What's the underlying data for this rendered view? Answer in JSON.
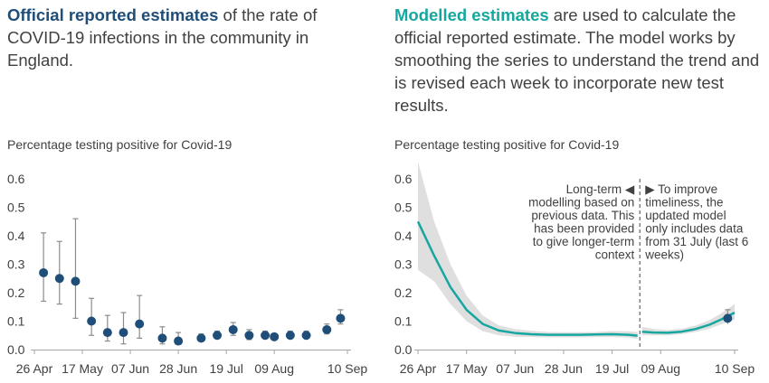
{
  "headings": {
    "left_bold": "Official reported estimates",
    "left_rest": " of the rate of COVID-19 infections in the community in England.",
    "right_bold": "Modelled estimates",
    "right_rest": " are used to calculate the official reported estimate. The model works by smoothing the series to understand the trend and is revised each week to incorporate new test results."
  },
  "colors": {
    "official": "#1f4e79",
    "modelled": "#15a79f",
    "band": "#d9d9d9",
    "axis": "#a6a6a6",
    "text": "#414042"
  },
  "chart_data": [
    {
      "type": "scatter",
      "ylabel": "Percentage testing positive for Covid-19",
      "ylim": [
        0,
        0.6
      ],
      "yticks": [
        0.0,
        0.1,
        0.2,
        0.3,
        0.4,
        0.5,
        0.6
      ],
      "xticks": [
        "26 Apr",
        "17 May",
        "07 Jun",
        "28 Jun",
        "19 Jul",
        "09 Aug",
        "10 Sep"
      ],
      "series": [
        {
          "x": [
            "2020-04-30",
            "2020-05-07",
            "2020-05-14",
            "2020-05-21",
            "2020-05-28",
            "2020-06-04",
            "2020-06-11",
            "2020-06-21",
            "2020-06-28",
            "2020-07-08",
            "2020-07-15",
            "2020-07-22",
            "2020-07-29",
            "2020-08-05",
            "2020-08-09",
            "2020-08-16",
            "2020-08-23",
            "2020-09-01",
            "2020-09-07"
          ],
          "y": [
            0.27,
            0.25,
            0.24,
            0.1,
            0.06,
            0.06,
            0.09,
            0.04,
            0.03,
            0.04,
            0.05,
            0.07,
            0.05,
            0.05,
            0.045,
            0.05,
            0.05,
            0.07,
            0.11
          ],
          "lower": [
            0.17,
            0.16,
            0.11,
            0.05,
            0.03,
            0.02,
            0.04,
            0.02,
            0.02,
            0.035,
            0.04,
            0.05,
            0.035,
            0.04,
            0.04,
            0.04,
            0.04,
            0.055,
            0.09
          ],
          "upper": [
            0.41,
            0.38,
            0.46,
            0.18,
            0.12,
            0.13,
            0.19,
            0.08,
            0.06,
            0.055,
            0.065,
            0.095,
            0.07,
            0.065,
            0.055,
            0.065,
            0.065,
            0.09,
            0.14
          ]
        }
      ]
    },
    {
      "type": "line",
      "ylabel": "Percentage testing positive for Covid-19",
      "ylim": [
        0,
        0.6
      ],
      "yticks": [
        0.0,
        0.1,
        0.2,
        0.3,
        0.4,
        0.5,
        0.6
      ],
      "xticks": [
        "26 Apr",
        "17 May",
        "07 Jun",
        "28 Jun",
        "19 Jul",
        "09 Aug",
        "10 Sep"
      ],
      "divider_date": "2020-07-31",
      "annotation_left": [
        "Long-term ◀",
        "modelling based on",
        "previous data. This",
        "has been provided",
        "to give longer-term",
        "context"
      ],
      "annotation_right": [
        "▶ To improve",
        "timeliness, the",
        "updated model",
        "only includes data",
        "from 31 July (last 6",
        "weeks)"
      ],
      "series": [
        {
          "x": [
            "2020-04-26",
            "2020-05-03",
            "2020-05-10",
            "2020-05-17",
            "2020-05-24",
            "2020-05-31",
            "2020-06-07",
            "2020-06-14",
            "2020-06-21",
            "2020-06-28",
            "2020-07-05",
            "2020-07-12",
            "2020-07-19",
            "2020-07-26",
            "2020-07-30"
          ],
          "y": [
            0.45,
            0.33,
            0.22,
            0.14,
            0.09,
            0.067,
            0.058,
            0.054,
            0.052,
            0.052,
            0.052,
            0.053,
            0.054,
            0.052,
            0.049
          ],
          "lower": [
            0.28,
            0.24,
            0.16,
            0.1,
            0.065,
            0.05,
            0.045,
            0.044,
            0.043,
            0.043,
            0.043,
            0.044,
            0.044,
            0.042,
            0.038
          ],
          "upper": [
            0.66,
            0.45,
            0.3,
            0.19,
            0.12,
            0.085,
            0.072,
            0.066,
            0.062,
            0.061,
            0.061,
            0.062,
            0.065,
            0.064,
            0.062
          ]
        },
        {
          "x": [
            "2020-08-01",
            "2020-08-06",
            "2020-08-12",
            "2020-08-18",
            "2020-08-24",
            "2020-08-30",
            "2020-09-04",
            "2020-09-10"
          ],
          "y": [
            0.063,
            0.06,
            0.059,
            0.063,
            0.072,
            0.087,
            0.105,
            0.13
          ],
          "lower": [
            0.05,
            0.05,
            0.05,
            0.054,
            0.062,
            0.073,
            0.088,
            0.105
          ],
          "upper": [
            0.08,
            0.072,
            0.069,
            0.073,
            0.084,
            0.103,
            0.126,
            0.16
          ]
        }
      ],
      "points": {
        "x": [
          "2020-09-07"
        ],
        "y": [
          0.11
        ],
        "lower": [
          0.09
        ],
        "upper": [
          0.14
        ]
      }
    }
  ]
}
